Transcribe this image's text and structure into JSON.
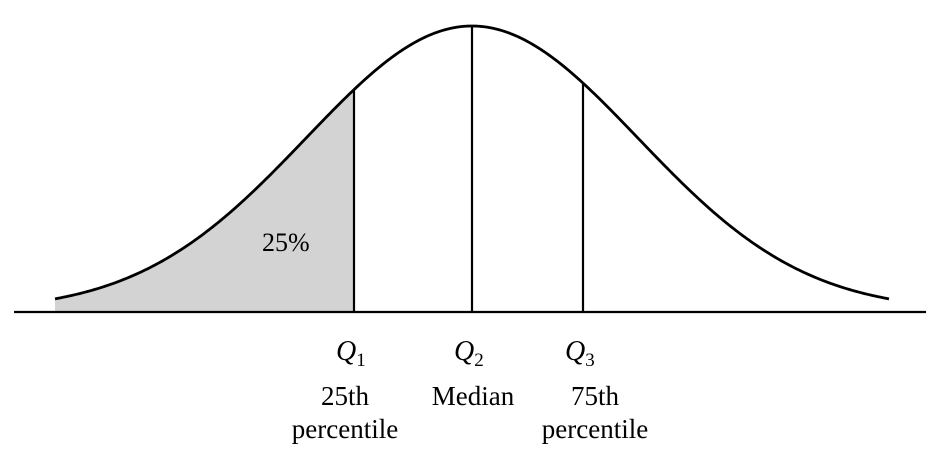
{
  "shaded_region": {
    "label": "25%",
    "fill_color": "#d3d3d3"
  },
  "quartiles": [
    {
      "symbol": "Q",
      "subscript": "1",
      "description_line1": "25th",
      "description_line2": "percentile"
    },
    {
      "symbol": "Q",
      "subscript": "2",
      "description_line1": "Median",
      "description_line2": ""
    },
    {
      "symbol": "Q",
      "subscript": "3",
      "description_line1": "75th",
      "description_line2": "percentile"
    }
  ],
  "colors": {
    "stroke": "#000000",
    "background": "#ffffff"
  }
}
